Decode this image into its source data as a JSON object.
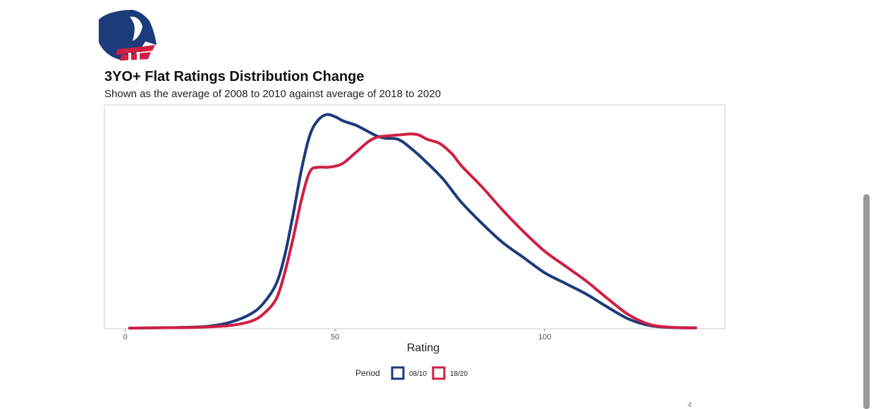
{
  "slide": {
    "page_number": "4"
  },
  "colors": {
    "series_0810": "#1b3b7b",
    "series_1820": "#cf1f42",
    "frame": "#cccccc",
    "text": "#222222"
  },
  "logo": {
    "icon": "horse-head-logo"
  },
  "chart_data": {
    "type": "line",
    "title": "3YO+ Flat Ratings Distribution Change",
    "subtitle": "Shown as the average of 2008 to 2010 against average of 2018 to 2020",
    "xlabel": "Rating",
    "ylabel": "",
    "xlim": [
      -5,
      143
    ],
    "ylim": [
      0,
      1.04
    ],
    "xticks": [
      0,
      50,
      100
    ],
    "grid": false,
    "legend": {
      "title": "Period",
      "position": "bottom",
      "entries": [
        "08/10",
        "18/20"
      ]
    },
    "series": [
      {
        "name": "08/10",
        "color": "#1b3b7b",
        "x": [
          1,
          10,
          15,
          20,
          25,
          30,
          33,
          36,
          38,
          40,
          42,
          44,
          46,
          48,
          50,
          52,
          55,
          58,
          60,
          62,
          65,
          68,
          72,
          76,
          80,
          85,
          90,
          95,
          100,
          105,
          110,
          115,
          120,
          125,
          130,
          136
        ],
        "values": [
          0.003,
          0.005,
          0.007,
          0.012,
          0.03,
          0.07,
          0.12,
          0.21,
          0.34,
          0.53,
          0.74,
          0.9,
          0.97,
          0.995,
          0.985,
          0.965,
          0.945,
          0.915,
          0.895,
          0.885,
          0.88,
          0.84,
          0.77,
          0.69,
          0.59,
          0.49,
          0.4,
          0.33,
          0.26,
          0.21,
          0.16,
          0.1,
          0.045,
          0.015,
          0.006,
          0.004
        ]
      },
      {
        "name": "18/20",
        "color": "#cf1f42",
        "x": [
          1,
          10,
          15,
          20,
          25,
          30,
          33,
          36,
          38,
          40,
          42,
          44,
          46,
          48,
          50,
          52,
          55,
          58,
          60,
          62,
          65,
          68,
          70,
          72,
          75,
          78,
          80,
          85,
          90,
          95,
          100,
          105,
          110,
          115,
          120,
          125,
          130,
          136
        ],
        "values": [
          0.003,
          0.005,
          0.006,
          0.009,
          0.015,
          0.035,
          0.07,
          0.14,
          0.26,
          0.42,
          0.6,
          0.73,
          0.75,
          0.75,
          0.755,
          0.77,
          0.82,
          0.87,
          0.89,
          0.895,
          0.9,
          0.905,
          0.9,
          0.88,
          0.86,
          0.81,
          0.76,
          0.66,
          0.55,
          0.45,
          0.36,
          0.29,
          0.22,
          0.14,
          0.065,
          0.02,
          0.007,
          0.004
        ]
      }
    ]
  }
}
